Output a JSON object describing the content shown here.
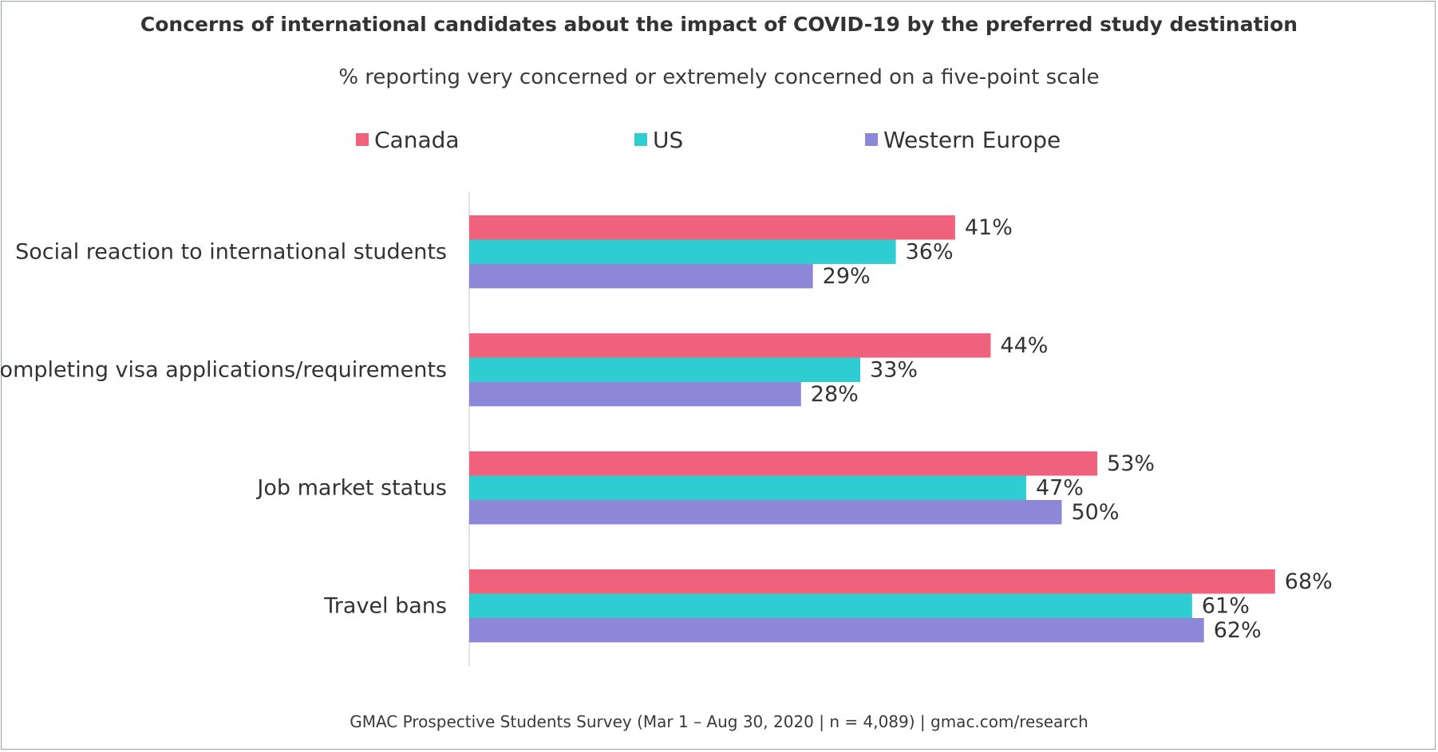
{
  "chart_data": {
    "type": "bar",
    "orientation": "horizontal",
    "title": "Concerns of international candidates about the impact of COVID-19 by the preferred study destination",
    "subtitle": "% reporting very concerned or extremely concerned on a five-point scale",
    "categories": [
      "Social reaction to international students",
      "Completing visa applications/requirements",
      "Job market status",
      "Travel bans"
    ],
    "series": [
      {
        "name": "Canada",
        "color": "#f0627c",
        "values": [
          41,
          44,
          53,
          68
        ]
      },
      {
        "name": "US",
        "color": "#2ecdd2",
        "values": [
          36,
          33,
          47,
          61
        ]
      },
      {
        "name": "Western Europe",
        "color": "#8d87d8",
        "values": [
          29,
          28,
          50,
          62
        ]
      }
    ],
    "value_suffix": "%",
    "xlim": [
      0,
      80
    ],
    "legend_position": "top",
    "grid": false,
    "source": "GMAC Prospective Students Survey (Mar 1 – Aug 30, 2020 | n = 4,089) | gmac.com/research"
  }
}
